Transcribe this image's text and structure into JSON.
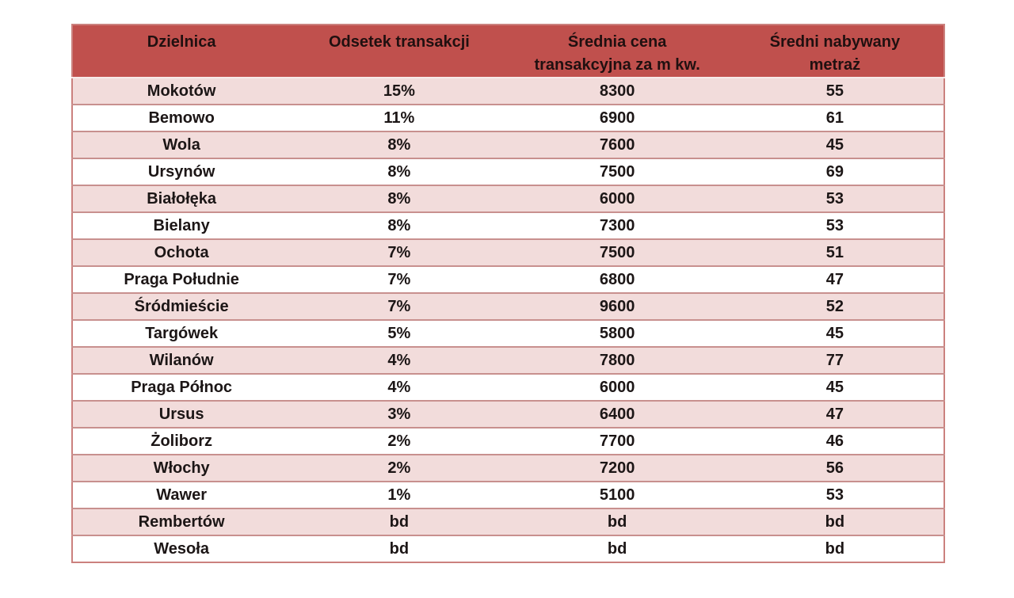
{
  "colors": {
    "header_bg": "#c0504d",
    "header_text": "#201010",
    "row_alt_bg": "#f2dcdb",
    "row_bg": "#ffffff",
    "row_border": "#c8908e",
    "outer_border": "#cb817e",
    "body_text": "#1c1616"
  },
  "table": {
    "columns": [
      {
        "lines": [
          "Dzielnica"
        ]
      },
      {
        "lines": [
          "Odsetek transakcji"
        ]
      },
      {
        "lines": [
          "Średnia cena",
          "transakcyjna za m kw."
        ]
      },
      {
        "lines": [
          "Średni nabywany",
          "metraż"
        ]
      }
    ],
    "rows": [
      [
        "Mokotów",
        "15%",
        "8300",
        "55"
      ],
      [
        "Bemowo",
        "11%",
        "6900",
        "61"
      ],
      [
        "Wola",
        "8%",
        "7600",
        "45"
      ],
      [
        "Ursynów",
        "8%",
        "7500",
        "69"
      ],
      [
        "Białołęka",
        "8%",
        "6000",
        "53"
      ],
      [
        "Bielany",
        "8%",
        "7300",
        "53"
      ],
      [
        "Ochota",
        "7%",
        "7500",
        "51"
      ],
      [
        "Praga Południe",
        "7%",
        "6800",
        "47"
      ],
      [
        "Śródmieście",
        "7%",
        "9600",
        "52"
      ],
      [
        "Targówek",
        "5%",
        "5800",
        "45"
      ],
      [
        "Wilanów",
        "4%",
        "7800",
        "77"
      ],
      [
        "Praga Północ",
        "4%",
        "6000",
        "45"
      ],
      [
        "Ursus",
        "3%",
        "6400",
        "47"
      ],
      [
        "Żoliborz",
        "2%",
        "7700",
        "46"
      ],
      [
        "Włochy",
        "2%",
        "7200",
        "56"
      ],
      [
        "Wawer",
        "1%",
        "5100",
        "53"
      ],
      [
        "Rembertów",
        "bd",
        "bd",
        "bd"
      ],
      [
        "Wesoła",
        "bd",
        "bd",
        "bd"
      ]
    ]
  },
  "chart_data": {
    "type": "table",
    "title": "",
    "categories": [
      "Mokotów",
      "Bemowo",
      "Wola",
      "Ursynów",
      "Białołęka",
      "Bielany",
      "Ochota",
      "Praga Południe",
      "Śródmieście",
      "Targówek",
      "Wilanów",
      "Praga Północ",
      "Ursus",
      "Żoliborz",
      "Włochy",
      "Wawer",
      "Rembertów",
      "Wesoła"
    ],
    "series": [
      {
        "name": "Odsetek transakcji",
        "values": [
          "15%",
          "11%",
          "8%",
          "8%",
          "8%",
          "8%",
          "7%",
          "7%",
          "7%",
          "5%",
          "4%",
          "4%",
          "3%",
          "2%",
          "2%",
          "1%",
          "bd",
          "bd"
        ]
      },
      {
        "name": "Średnia cena transakcyjna za m kw.",
        "values": [
          8300,
          6900,
          7600,
          7500,
          6000,
          7300,
          7500,
          6800,
          9600,
          5800,
          7800,
          6000,
          6400,
          7700,
          7200,
          5100,
          "bd",
          "bd"
        ]
      },
      {
        "name": "Średni nabywany metraż",
        "values": [
          55,
          61,
          45,
          69,
          53,
          53,
          51,
          47,
          52,
          45,
          77,
          45,
          47,
          46,
          56,
          53,
          "bd",
          "bd"
        ]
      }
    ],
    "layout_hints": {
      "header_top_aligned": true,
      "alternating_row_shading": true,
      "columns_equal_width": true
    }
  }
}
